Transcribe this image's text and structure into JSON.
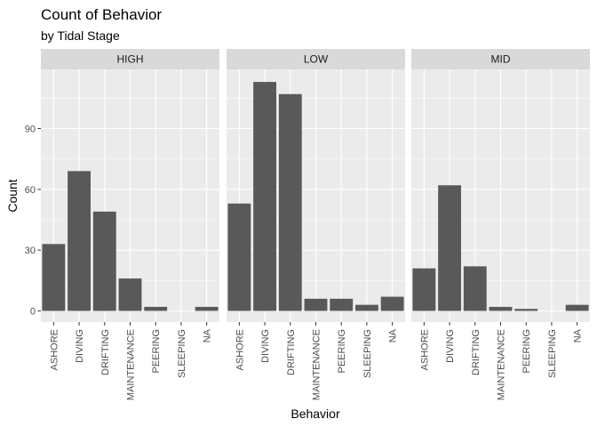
{
  "chart_data": {
    "type": "bar",
    "title": "Count of Behavior",
    "subtitle": "by Tidal Stage",
    "xlabel": "Behavior",
    "ylabel": "Count",
    "ylim": [
      0,
      120
    ],
    "yticks": [
      0,
      30,
      60,
      90
    ],
    "categories": [
      "ASHORE",
      "DIVING",
      "DRIFTING",
      "MAINTENANCE",
      "PEERING",
      "SLEEPING",
      "NA"
    ],
    "grid": true,
    "facets": [
      {
        "label": "HIGH",
        "values": [
          33,
          69,
          49,
          16,
          2,
          0,
          2
        ]
      },
      {
        "label": "LOW",
        "values": [
          53,
          113,
          107,
          6,
          6,
          3,
          7
        ]
      },
      {
        "label": "MID",
        "values": [
          21,
          62,
          22,
          2,
          1,
          0,
          3
        ]
      }
    ],
    "colors": {
      "bar": "#595959",
      "panel_bg": "#ebebeb",
      "strip_bg": "#d9d9d9",
      "grid_major": "#ffffff",
      "tick": "#333333"
    }
  }
}
